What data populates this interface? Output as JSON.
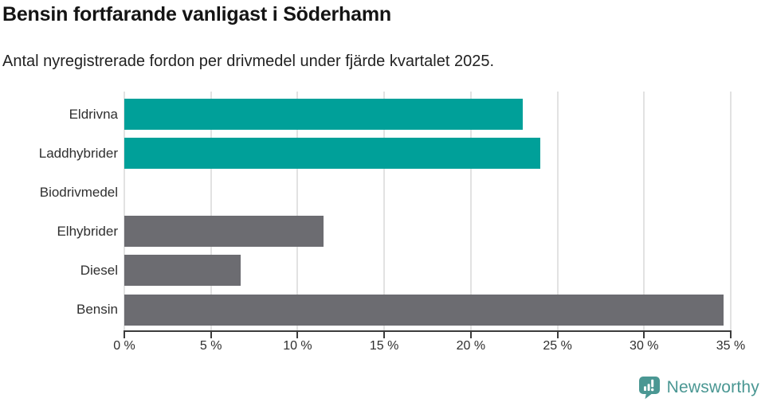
{
  "header": {
    "title": "Bensin fortfarande vanligast i Söderhamn",
    "subtitle": "Antal nyregistrerade fordon per drivmedel under fjärde kvartalet 2025."
  },
  "chart_data": {
    "type": "bar",
    "orientation": "horizontal",
    "title": "Bensin fortfarande vanligast i Söderhamn",
    "subtitle": "Antal nyregistrerade fordon per drivmedel under fjärde kvartalet 2025.",
    "categories": [
      "Eldrivna",
      "Laddhybrider",
      "Biodrivmedel",
      "Elhybrider",
      "Diesel",
      "Bensin"
    ],
    "values": [
      23,
      24,
      0,
      11.5,
      6.7,
      34.6
    ],
    "unit": "%",
    "xlim": [
      0,
      35
    ],
    "xticks": [
      0,
      5,
      10,
      15,
      20,
      25,
      30,
      35
    ],
    "xtick_labels": [
      "0 %",
      "5 %",
      "10 %",
      "15 %",
      "20 %",
      "25 %",
      "30 %",
      "35 %"
    ],
    "grid": "vertical-light-behind-bars",
    "legend": "none",
    "bar_colors": [
      "#00a099",
      "#00a099",
      "#6c6c71",
      "#6c6c71",
      "#6c6c71",
      "#6c6c71"
    ],
    "highlight_color": "#00a099",
    "base_color": "#6c6c71"
  },
  "colors": {
    "accent_teal": "#00a099",
    "neutral_gray": "#6c6c71",
    "brand_teal": "#4a9793",
    "gridline": "#e2e2e2",
    "axis": "#3c3c3c"
  },
  "footer": {
    "brand": "Newsworthy",
    "logo_icon": "newsworthy-speech-bubble-bar-chart-icon"
  }
}
